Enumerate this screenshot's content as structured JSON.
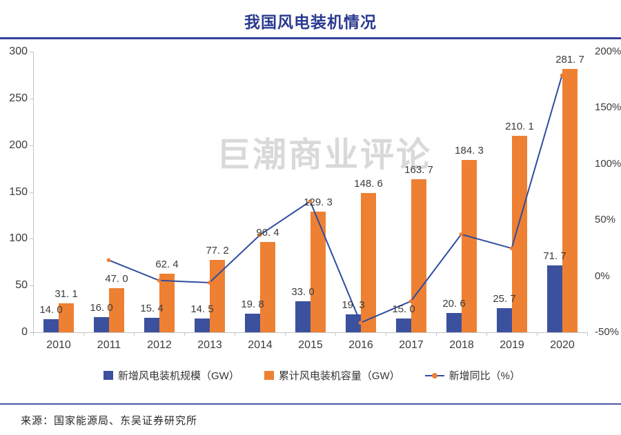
{
  "title": "我国风电装机情况",
  "watermark": "巨潮商业评论",
  "source_note": "来源：国家能源局、东吴证券研究所",
  "colors": {
    "title": "#2a3a8f",
    "top_rule": "#2f3e99",
    "bottom_rule": "#4a57a8",
    "bar_new": "#3b519e",
    "bar_cumulative": "#ee8033",
    "line": "#2e4da0",
    "marker": "#ed7d31",
    "axis": "#c3c3c3",
    "watermark": "#d9d9d9"
  },
  "chart_data": {
    "type": "bar",
    "subtype": "bar+line combo, dual axis",
    "title": "我国风电装机情况",
    "categories": [
      "2010",
      "2011",
      "2012",
      "2013",
      "2014",
      "2015",
      "2016",
      "2017",
      "2018",
      "2019",
      "2020"
    ],
    "series": [
      {
        "name": "新增风电装机规模（GW）",
        "type": "bar",
        "axis": "left",
        "color_key": "bar_new",
        "values": [
          14.0,
          16.0,
          15.4,
          14.5,
          19.8,
          33.0,
          19.3,
          15.0,
          20.6,
          25.7,
          71.7
        ],
        "labels": [
          "14. 0",
          "16. 0",
          "15. 4",
          "14. 5",
          "19. 8",
          "33. 0",
          "19. 3",
          "15. 0",
          "20. 6",
          "25. 7",
          "71. 7"
        ]
      },
      {
        "name": "累计风电装机容量（GW）",
        "type": "bar",
        "axis": "left",
        "color_key": "bar_cumulative",
        "values": [
          31.1,
          47.0,
          62.4,
          77.2,
          96.4,
          129.3,
          148.6,
          163.7,
          184.3,
          210.1,
          281.7
        ],
        "labels": [
          "31. 1",
          "47. 0",
          "62. 4",
          "77. 2",
          "96. 4",
          "129. 3",
          "148. 6",
          "163. 7",
          "184. 3",
          "210. 1",
          "281. 7"
        ]
      },
      {
        "name": "新增同比（%）",
        "type": "line",
        "axis": "right",
        "color_key": "line",
        "marker_color_key": "marker",
        "values": [
          null,
          14.3,
          -3.8,
          -5.8,
          36.6,
          66.7,
          -41.5,
          -22.3,
          37.3,
          24.8,
          179.0
        ]
      }
    ],
    "left_axis": {
      "min": 0,
      "max": 300,
      "tick_labels_top_to_bottom": [
        "300",
        "250",
        "200",
        "150",
        "100",
        "50",
        "0"
      ]
    },
    "right_axis": {
      "min": -50,
      "max": 200,
      "tick_labels_top_to_bottom": [
        "200%",
        "150%",
        "100%",
        "50%",
        "0%",
        "-50%"
      ]
    },
    "grid": "off",
    "legend_position": "bottom"
  }
}
